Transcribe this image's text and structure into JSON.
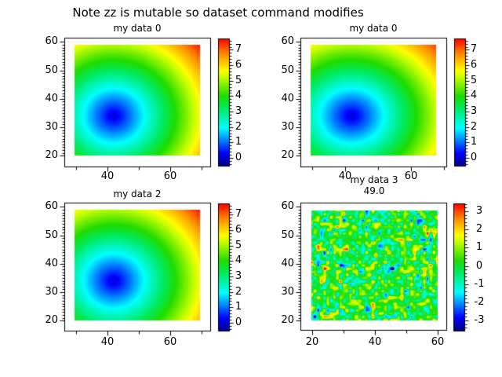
{
  "figure": {
    "title": "Note zz is mutable so dataset command modifies",
    "background": "#ffffff"
  },
  "colormap": {
    "name": "spectrum",
    "stops": [
      [
        0.0,
        [
          0,
          0,
          132
        ]
      ],
      [
        0.1,
        [
          0,
          0,
          255
        ]
      ],
      [
        0.3,
        [
          0,
          255,
          255
        ]
      ],
      [
        0.45,
        [
          0,
          235,
          100
        ]
      ],
      [
        0.55,
        [
          30,
          220,
          0
        ]
      ],
      [
        0.7,
        [
          200,
          255,
          0
        ]
      ],
      [
        0.75,
        [
          255,
          255,
          0
        ]
      ],
      [
        0.88,
        [
          255,
          140,
          0
        ]
      ],
      [
        1.0,
        [
          255,
          0,
          0
        ]
      ]
    ]
  },
  "chart_data": [
    {
      "id": "top-left",
      "type": "heatmap",
      "title": "my data 0",
      "x_ticks": [
        30,
        40,
        50,
        60,
        70
      ],
      "x_tick_labels": [
        40,
        60
      ],
      "y_tick_labels": [
        60,
        50,
        40,
        30,
        20
      ],
      "y_minor_step": 1,
      "image_extent": {
        "x": [
          29.5,
          69.5
        ],
        "y": [
          20,
          59
        ]
      },
      "field": {
        "kind": "radial",
        "center": [
          42,
          34
        ],
        "scale": 4.88,
        "zmin": 0,
        "zmax": 7.6
      },
      "colorbar": {
        "tick_labels": [
          7,
          6,
          5,
          4,
          3,
          2,
          1,
          0
        ],
        "range": [
          -0.5,
          7.74
        ],
        "minor_step": 0.2
      }
    },
    {
      "id": "top-right",
      "type": "heatmap",
      "title": "my data 0",
      "x_ticks": [
        30,
        40,
        50,
        60,
        70
      ],
      "x_tick_labels": [
        40,
        60
      ],
      "y_tick_labels": [
        60,
        50,
        40,
        30,
        20
      ],
      "y_minor_step": 1,
      "image_extent": {
        "x": [
          29.5,
          67.6
        ],
        "y": [
          20,
          59
        ]
      },
      "field": {
        "kind": "radial",
        "center": [
          42,
          34
        ],
        "scale": 4.88,
        "zmin": 0,
        "zmax": 7.6
      },
      "colorbar": {
        "tick_labels": [
          7,
          6,
          5,
          4,
          3,
          2,
          1,
          0
        ],
        "range": [
          -0.5,
          7.74
        ],
        "minor_step": 0.2
      }
    },
    {
      "id": "bottom-left",
      "type": "heatmap",
      "title": "my data 2",
      "x_ticks": [
        30,
        40,
        50,
        60,
        70
      ],
      "x_tick_labels": [
        40,
        60
      ],
      "y_tick_labels": [
        60,
        50,
        40,
        30,
        20
      ],
      "y_minor_step": 1,
      "image_extent": {
        "x": [
          29.5,
          69.5
        ],
        "y": [
          20,
          59
        ]
      },
      "field": {
        "kind": "radial",
        "center": [
          42,
          34
        ],
        "scale": 4.88,
        "zmin": 0,
        "zmax": 7.6
      },
      "colorbar": {
        "tick_labels": [
          7,
          6,
          5,
          4,
          3,
          2,
          1,
          0
        ],
        "range": [
          -0.5,
          7.74
        ],
        "minor_step": 0.2
      }
    },
    {
      "id": "bottom-right",
      "type": "heatmap",
      "title": "my data 3",
      "subtitle": "49.0",
      "x_ticks": [
        20,
        30,
        40,
        50,
        60
      ],
      "x_tick_labels": [
        20,
        40,
        60
      ],
      "y_tick_labels": [
        60,
        50,
        40,
        30,
        20
      ],
      "y_minor_step": 1,
      "image_extent": {
        "x": [
          19.5,
          60
        ],
        "y": [
          20,
          59
        ]
      },
      "field": {
        "kind": "noise",
        "seed": 1337,
        "mean": 0,
        "std": 1.15,
        "grid": [
          40,
          35
        ]
      },
      "colorbar": {
        "tick_labels": [
          3,
          2,
          1,
          0,
          -1,
          -2,
          -3
        ],
        "range": [
          -3.5,
          3.43
        ],
        "minor_step": 0.2
      }
    }
  ]
}
